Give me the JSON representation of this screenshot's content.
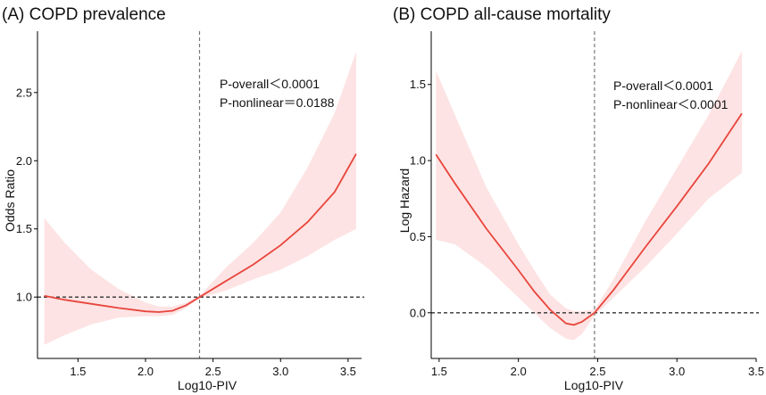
{
  "chart_data": [
    {
      "id": "A",
      "type": "line",
      "title": "(A) COPD prevalence",
      "xlabel": "Log10-PIV",
      "ylabel": "Odds Ratio",
      "xlim": [
        1.2,
        3.6
      ],
      "ylim": [
        0.55,
        2.95
      ],
      "xticks": [
        1.5,
        2.0,
        2.5,
        3.0,
        3.5
      ],
      "xtick_labels": [
        "1.5",
        "2.0",
        "2.5",
        "3.0",
        "3.5"
      ],
      "yticks": [
        1.0,
        1.5,
        2.0,
        2.5
      ],
      "ytick_labels": [
        "1.0",
        "1.5",
        "2.0",
        "2.5"
      ],
      "hline": 1.0,
      "vline": 2.4,
      "annotations": [
        "P-overall＜0.0001",
        "P-nonlinear＝0.0188"
      ],
      "series": [
        {
          "name": "Odds Ratio",
          "x": [
            1.25,
            1.4,
            1.6,
            1.8,
            2.0,
            2.1,
            2.2,
            2.3,
            2.4,
            2.6,
            2.8,
            3.0,
            3.2,
            3.4,
            3.56
          ],
          "y": [
            1.01,
            0.98,
            0.95,
            0.92,
            0.895,
            0.89,
            0.9,
            0.94,
            1.0,
            1.12,
            1.24,
            1.38,
            1.55,
            1.77,
            2.05
          ],
          "lower": [
            0.65,
            0.72,
            0.8,
            0.85,
            0.86,
            0.86,
            0.87,
            0.92,
            0.99,
            1.05,
            1.13,
            1.2,
            1.3,
            1.42,
            1.5
          ],
          "upper": [
            1.58,
            1.4,
            1.2,
            1.06,
            0.96,
            0.93,
            0.93,
            0.96,
            1.01,
            1.22,
            1.4,
            1.62,
            1.95,
            2.35,
            2.8
          ]
        }
      ]
    },
    {
      "id": "B",
      "type": "line",
      "title": "(B) COPD all-cause mortality",
      "xlabel": "Log10-PIV",
      "ylabel": "Log Hazard",
      "xlim": [
        1.45,
        3.5
      ],
      "ylim": [
        -0.3,
        1.85
      ],
      "xticks": [
        1.5,
        2.0,
        2.5,
        3.0,
        3.5
      ],
      "xtick_labels": [
        "1.5",
        "2.0",
        "2.5",
        "3.0",
        "3.5"
      ],
      "yticks": [
        0.0,
        0.5,
        1.0,
        1.5
      ],
      "ytick_labels": [
        "0.0",
        "0.5",
        "1.0",
        "1.5"
      ],
      "hline": 0.0,
      "vline": 2.48,
      "annotations": [
        "P-overall＜0.0001",
        "P-nonlinear＜0.0001"
      ],
      "series": [
        {
          "name": "Log Hazard",
          "x": [
            1.48,
            1.6,
            1.8,
            2.0,
            2.1,
            2.2,
            2.3,
            2.35,
            2.4,
            2.48,
            2.6,
            2.8,
            3.0,
            3.2,
            3.41
          ],
          "y": [
            1.04,
            0.85,
            0.55,
            0.28,
            0.14,
            0.02,
            -0.07,
            -0.08,
            -0.06,
            0.0,
            0.15,
            0.43,
            0.7,
            0.98,
            1.31
          ],
          "lower": [
            0.48,
            0.45,
            0.3,
            0.1,
            0.0,
            -0.1,
            -0.17,
            -0.18,
            -0.14,
            -0.02,
            0.1,
            0.3,
            0.52,
            0.75,
            0.92
          ],
          "upper": [
            1.59,
            1.3,
            0.82,
            0.45,
            0.28,
            0.12,
            0.03,
            0.01,
            0.01,
            0.02,
            0.22,
            0.6,
            0.95,
            1.3,
            1.72
          ]
        }
      ]
    }
  ],
  "colors": {
    "curve": "#e8453c",
    "band": "#fde3e3"
  }
}
